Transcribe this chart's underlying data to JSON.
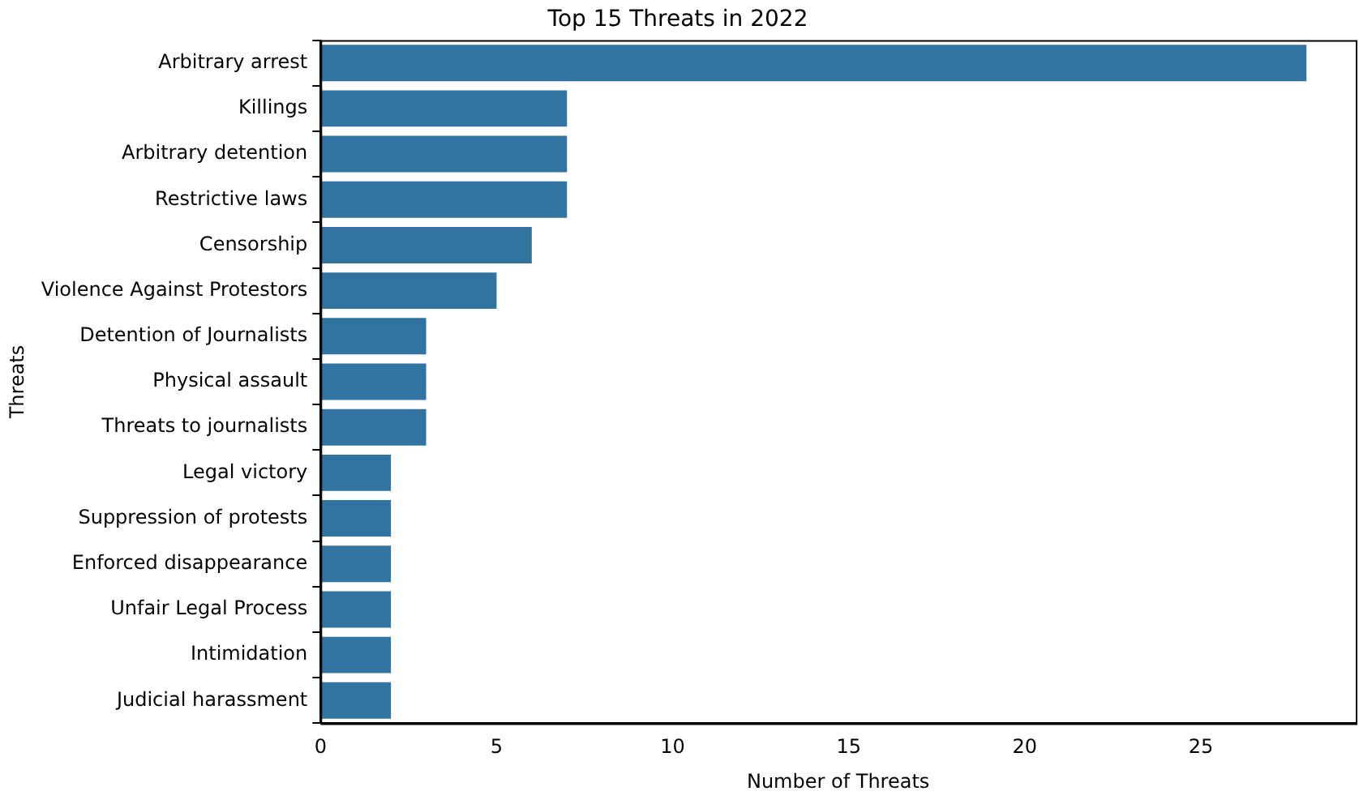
{
  "chart_data": {
    "type": "bar",
    "orientation": "horizontal",
    "title": "Top 15 Threats in 2022",
    "xlabel": "Number of Threats",
    "ylabel": "Threats",
    "categories": [
      "Arbitrary arrest",
      "Killings",
      "Arbitrary detention",
      "Restrictive laws",
      "Censorship",
      "Violence Against Protestors",
      "Detention of Journalists",
      "Physical assault",
      "Threats to journalists",
      "Legal victory",
      "Suppression of protests",
      "Enforced disappearance",
      "Unfair Legal Process",
      "Intimidation",
      "Judicial harassment"
    ],
    "values": [
      28,
      7,
      7,
      7,
      6,
      5,
      3,
      3,
      3,
      2,
      2,
      2,
      2,
      2,
      2
    ],
    "color": "#3274a1",
    "xlim": [
      0,
      29.4
    ],
    "xticks": [
      0,
      5,
      10,
      15,
      20,
      25
    ],
    "grid": false,
    "legend": false
  }
}
